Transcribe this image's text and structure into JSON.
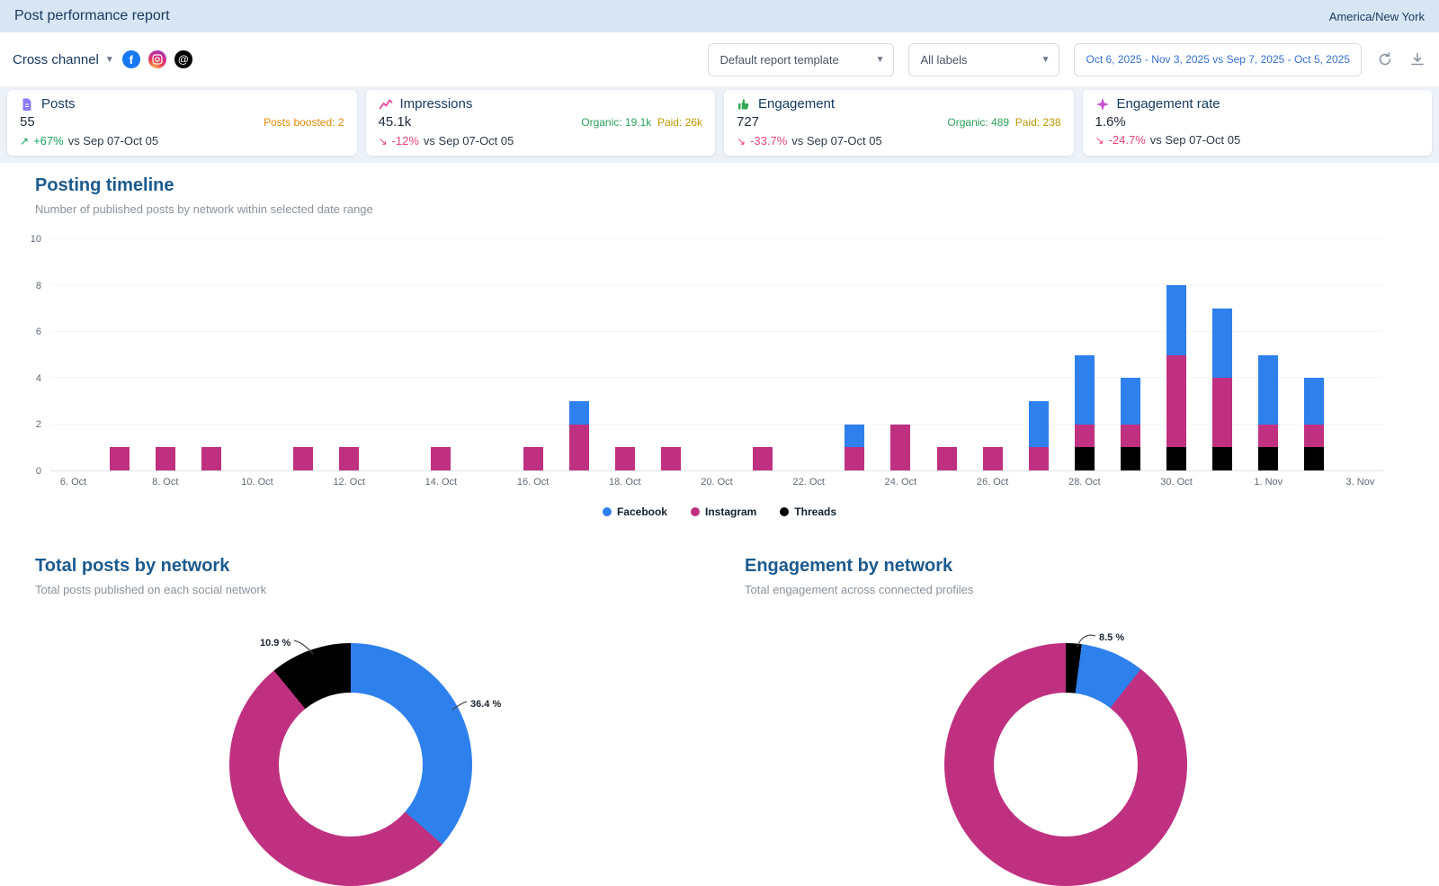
{
  "colors": {
    "facebook": "#2e80ed",
    "instagram": "#bf3180",
    "threads": "#000000",
    "positive": "#17a05a",
    "negative": "#e8437a",
    "organic": "#2aa05a",
    "paid": "#bb9800",
    "boosted": "#e08a00",
    "section_title": "#1b5a8e",
    "header_bg": "#d8e6f4",
    "date_text": "#3570d4"
  },
  "header": {
    "title": "Post performance report",
    "timezone": "America/New York"
  },
  "toolbar": {
    "channel_selector": "Cross channel",
    "networks": [
      "Facebook",
      "Instagram",
      "Threads"
    ],
    "template_select": "Default report template",
    "labels_select": "All labels",
    "date_range": "Oct 6, 2025 - Nov 3, 2025 vs Sep 7, 2025 - Oct 5, 2025"
  },
  "kpi_cards": [
    {
      "title": "Posts",
      "value": "55",
      "side_note": "Posts boosted: 2",
      "delta": "+67%",
      "trend": "up",
      "compare": "vs Sep 07-Oct 05"
    },
    {
      "title": "Impressions",
      "value": "45.1k",
      "organic": "Organic: 19.1k",
      "paid": "Paid: 26k",
      "delta": "-12%",
      "trend": "down",
      "compare": "vs Sep 07-Oct 05"
    },
    {
      "title": "Engagement",
      "value": "727",
      "organic": "Organic: 489",
      "paid": "Paid: 238",
      "delta": "-33.7%",
      "trend": "down",
      "compare": "vs Sep 07-Oct 05"
    },
    {
      "title": "Engagement rate",
      "value": "1.6%",
      "delta": "-24.7%",
      "trend": "down",
      "compare": "vs Sep 07-Oct 05"
    }
  ],
  "sections": {
    "timeline": {
      "title": "Posting timeline",
      "subtitle": "Number of published posts by network within selected date range"
    },
    "posts_by_network": {
      "title": "Total posts by network",
      "subtitle": "Total posts published on each social network"
    },
    "engagement_by_network": {
      "title": "Engagement by network",
      "subtitle": "Total engagement across connected profiles"
    }
  },
  "chart_data": [
    {
      "type": "bar",
      "stacked": true,
      "title": "Posting timeline",
      "categories": [
        "6. Oct",
        "7. Oct",
        "8. Oct",
        "9. Oct",
        "10. Oct",
        "11. Oct",
        "12. Oct",
        "13. Oct",
        "14. Oct",
        "15. Oct",
        "16. Oct",
        "17. Oct",
        "18. Oct",
        "19. Oct",
        "20. Oct",
        "21. Oct",
        "22. Oct",
        "23. Oct",
        "24. Oct",
        "25. Oct",
        "26. Oct",
        "27. Oct",
        "28. Oct",
        "29. Oct",
        "30. Oct",
        "31. Oct",
        "1. Nov",
        "2. Nov",
        "3. Nov"
      ],
      "tick_every": 2,
      "series": [
        {
          "name": "Facebook",
          "color": "#2e80ed",
          "values": [
            0,
            0,
            0,
            0,
            0,
            0,
            0,
            0,
            0,
            0,
            0,
            1,
            0,
            0,
            0,
            0,
            0,
            1,
            0,
            0,
            0,
            2,
            3,
            2,
            3,
            3,
            3,
            2,
            0
          ]
        },
        {
          "name": "Instagram",
          "color": "#bf3180",
          "values": [
            0,
            1,
            1,
            1,
            0,
            1,
            1,
            0,
            1,
            0,
            1,
            2,
            1,
            1,
            0,
            1,
            0,
            1,
            2,
            1,
            1,
            1,
            1,
            1,
            4,
            3,
            1,
            1,
            0
          ]
        },
        {
          "name": "Threads",
          "color": "#000000",
          "values": [
            0,
            0,
            0,
            0,
            0,
            0,
            0,
            0,
            0,
            0,
            0,
            0,
            0,
            0,
            0,
            0,
            0,
            0,
            0,
            0,
            0,
            0,
            1,
            1,
            1,
            1,
            1,
            1,
            0
          ]
        }
      ],
      "stack_order_bottom_to_top": [
        "Threads",
        "Instagram",
        "Facebook"
      ],
      "ylim": [
        0,
        10
      ],
      "yticks": [
        0,
        2,
        4,
        6,
        8,
        10
      ],
      "legend_position": "bottom"
    },
    {
      "type": "pie",
      "donut": true,
      "title": "Total posts by network",
      "labels": [
        "Facebook",
        "Instagram",
        "Threads"
      ],
      "values": [
        20,
        29,
        6
      ],
      "percentages": [
        36.4,
        52.7,
        10.9
      ],
      "label_facebook": "36.4 %",
      "label_threads": "10.9 %",
      "slices_clockwise_from_top": [
        {
          "label": "Facebook",
          "pct": 36.4,
          "color": "#2e80ed"
        },
        {
          "label": "Instagram",
          "pct": 52.7,
          "color": "#bf3180"
        },
        {
          "label": "Threads",
          "pct": 10.9,
          "color": "#000000"
        }
      ]
    },
    {
      "type": "pie",
      "donut": true,
      "title": "Engagement by network",
      "labels": [
        "Threads",
        "Facebook",
        "Instagram"
      ],
      "percentages_estimated": [
        2.1,
        8.5,
        89.4
      ],
      "label_facebook": "8.5 %",
      "slices_clockwise_from_top": [
        {
          "label": "Threads",
          "pct": 2.1,
          "color": "#000000"
        },
        {
          "label": "Facebook",
          "pct": 8.5,
          "color": "#2e80ed"
        },
        {
          "label": "Instagram",
          "pct": 89.4,
          "color": "#bf3180"
        }
      ]
    }
  ]
}
